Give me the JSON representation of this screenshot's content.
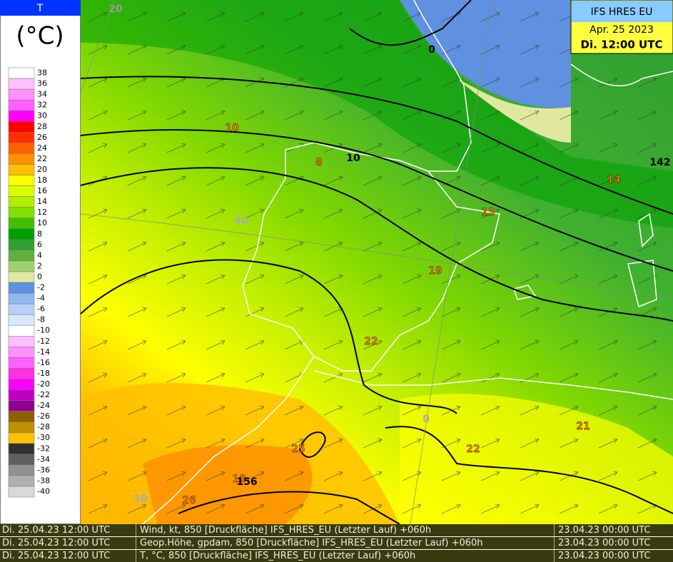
{
  "legend": {
    "title": "T",
    "unit": "(°C)",
    "items": [
      {
        "value": 38,
        "color": "#ffffff"
      },
      {
        "value": 36,
        "color": "#ffc0ff"
      },
      {
        "value": 34,
        "color": "#ff90ff"
      },
      {
        "value": 32,
        "color": "#ff60ff"
      },
      {
        "value": 30,
        "color": "#ff00ff"
      },
      {
        "value": 28,
        "color": "#ff0000"
      },
      {
        "value": 26,
        "color": "#ff3000"
      },
      {
        "value": 24,
        "color": "#ff6000"
      },
      {
        "value": 22,
        "color": "#ff9000"
      },
      {
        "value": 20,
        "color": "#ffc000"
      },
      {
        "value": 18,
        "color": "#ffff00"
      },
      {
        "value": 16,
        "color": "#d8ff00"
      },
      {
        "value": 14,
        "color": "#b0f000"
      },
      {
        "value": 12,
        "color": "#80e000"
      },
      {
        "value": 10,
        "color": "#40c000"
      },
      {
        "value": 8,
        "color": "#00a000"
      },
      {
        "value": 6,
        "color": "#30a030"
      },
      {
        "value": 4,
        "color": "#60b040"
      },
      {
        "value": 2,
        "color": "#a0d070"
      },
      {
        "value": 0,
        "color": "#e0e8a0"
      },
      {
        "value": -2,
        "color": "#6090e0"
      },
      {
        "value": -4,
        "color": "#90b8f0"
      },
      {
        "value": -6,
        "color": "#b8d0f8"
      },
      {
        "value": -8,
        "color": "#d8e8ff"
      },
      {
        "value": -10,
        "color": "#ffffff"
      },
      {
        "value": -12,
        "color": "#ffc0ff"
      },
      {
        "value": -14,
        "color": "#ff90ff"
      },
      {
        "value": -16,
        "color": "#ff60ff"
      },
      {
        "value": -18,
        "color": "#ff30e0"
      },
      {
        "value": -20,
        "color": "#ff00ff"
      },
      {
        "value": -22,
        "color": "#c000c0"
      },
      {
        "value": -24,
        "color": "#900090"
      },
      {
        "value": -26,
        "color": "#906000"
      },
      {
        "value": -28,
        "color": "#c09000"
      },
      {
        "value": -30,
        "color": "#ffc000"
      },
      {
        "value": -32,
        "color": "#303030"
      },
      {
        "value": -34,
        "color": "#606060"
      },
      {
        "value": -36,
        "color": "#909090"
      },
      {
        "value": -38,
        "color": "#b0b0b0"
      },
      {
        "value": -40,
        "color": "#d8d8d8"
      }
    ]
  },
  "info": {
    "model": "IFS HRES EU",
    "date": "Apr. 25 2023",
    "time": "Di. 12:00 UTC"
  },
  "map_labels": {
    "lat20": 20,
    "lat40": 40,
    "lat30": 30,
    "t10a": 10,
    "t8": 8,
    "h10": 10,
    "t13": 13,
    "t19": 19,
    "t22a": 22,
    "t22b": 22,
    "t21": 21,
    "t25": 25,
    "t18": 18,
    "t26": 26,
    "h156": 156,
    "t14": 14,
    "h142": 142,
    "h0a": 0,
    "h0b": 0
  },
  "footer": {
    "rows": [
      [
        "Di. 25.04.23 12:00 UTC",
        "Wind, kt, 850 [Druckfläche] IFS_HRES_EU (Letzter Lauf) +060h",
        "23.04.23 00:00 UTC"
      ],
      [
        "Di. 25.04.23 12:00 UTC",
        "Geop.Höhe, gpdam, 850 [Druckfläche] IFS_HRES_EU (Letzter Lauf) +060h",
        "23.04.23 00:00 UTC"
      ],
      [
        "Di. 25.04.23 12:00 UTC",
        "T, °C, 850 [Druckfläche] IFS_HRES_EU (Letzter Lauf) +060h",
        "23.04.23 00:00 UTC"
      ]
    ]
  }
}
